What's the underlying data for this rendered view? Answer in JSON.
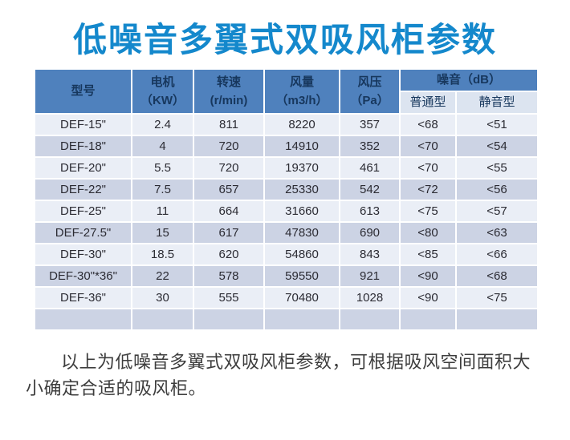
{
  "title": "低噪音多翼式双吸风柜参数",
  "table": {
    "headers": {
      "model": "型号",
      "motor_line1": "电机",
      "motor_line2": "（KW）",
      "speed_line1": "转速",
      "speed_line2": "(r/min)",
      "airflow_line1": "风量",
      "airflow_line2": "（m3/h）",
      "pressure_line1": "风压",
      "pressure_line2": "（Pa）",
      "noise_group": "噪音（dB）",
      "noise_normal": "普通型",
      "noise_silent": "静音型"
    },
    "rows": [
      [
        "DEF-15\"",
        "2.4",
        "811",
        "8220",
        "357",
        "<68",
        "<51"
      ],
      [
        "DEF-18\"",
        "4",
        "720",
        "14910",
        "352",
        "<70",
        "<54"
      ],
      [
        "DEF-20\"",
        "5.5",
        "720",
        "19370",
        "461",
        "<70",
        "<55"
      ],
      [
        "DEF-22\"",
        "7.5",
        "657",
        "25330",
        "542",
        "<72",
        "<56"
      ],
      [
        "DEF-25\"",
        "11",
        "664",
        "31660",
        "613",
        "<75",
        "<57"
      ],
      [
        "DEF-27.5\"",
        "15",
        "617",
        "47830",
        "690",
        "<80",
        "<63"
      ],
      [
        "DEF-30\"",
        "18.5",
        "620",
        "54860",
        "843",
        "<85",
        "<66"
      ],
      [
        "DEF-30\"*36\"",
        "22",
        "578",
        "59550",
        "921",
        "<90",
        "<68"
      ],
      [
        "DEF-36\"",
        "30",
        "555",
        "70480",
        "1028",
        "<90",
        "<75"
      ],
      [
        "",
        "",
        "",
        "",
        "",
        "",
        ""
      ]
    ],
    "cell_names": [
      "model",
      "motor-kw",
      "speed-rpm",
      "airflow-m3h",
      "pressure-pa",
      "noise-normal",
      "noise-silent"
    ]
  },
  "description": "以上为低噪音多翼式双吸风柜参数，可根据吸风空间面积大小确定合适的吸风柜。",
  "colors": {
    "title_blue": "#1488cc",
    "header_bg": "#4f81bd",
    "header_text": "#17375d",
    "subheader_bg": "#dce4f0",
    "row_light": "#eaeef6",
    "row_dark": "#ccd3e4",
    "body_text": "#3d3d3d",
    "cell_text": "#2b2b33"
  }
}
